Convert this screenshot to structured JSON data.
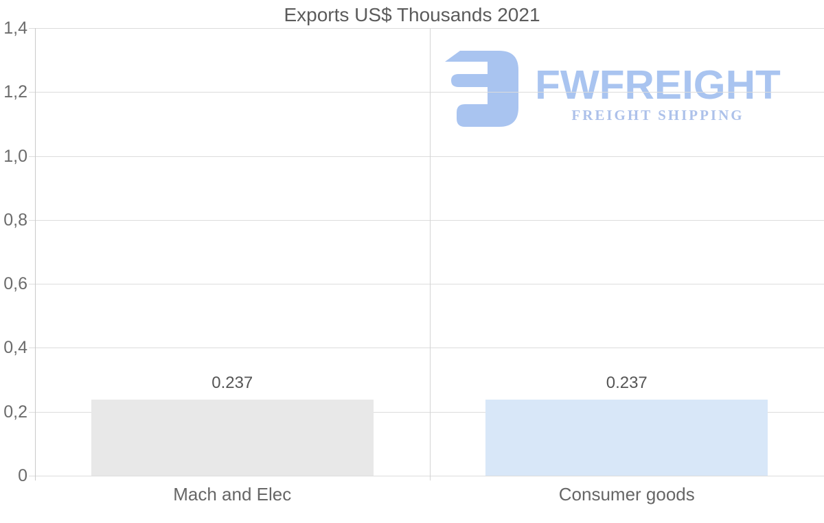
{
  "title": "Exports US$ Thousands 2021",
  "logo": {
    "brand": "FWFREIGHT",
    "tagline": "FREIGHT SHIPPING",
    "brand_color": "#a7c3f0",
    "tagline_color": "#abc0ea",
    "icon": "fw-mirrored-e-mark",
    "icon_color": "#a7c3f0"
  },
  "chart_data": {
    "type": "bar",
    "title": "Exports US$ Thousands 2021",
    "categories": [
      "Mach and Elec",
      "Consumer goods"
    ],
    "values": [
      0.237,
      0.237
    ],
    "value_labels": [
      "0.237",
      "0.237"
    ],
    "bar_colors": [
      "#e8e8e8",
      "#d8e7f8"
    ],
    "ylim": [
      0,
      1.4
    ],
    "y_ticks": [
      {
        "value": 0.0,
        "label": "0"
      },
      {
        "value": 0.2,
        "label": "0,2"
      },
      {
        "value": 0.4,
        "label": "0,4"
      },
      {
        "value": 0.6,
        "label": "0,6"
      },
      {
        "value": 0.8,
        "label": "0,8"
      },
      {
        "value": 1.0,
        "label": "1,0"
      },
      {
        "value": 1.2,
        "label": "1,2"
      },
      {
        "value": 1.4,
        "label": "1,4"
      }
    ],
    "grid": true,
    "legend": "none",
    "colors": {
      "gridline": "#dcdcdc",
      "axis_line": "#c9c9c9",
      "category_divider": "#d4d4d4",
      "title_text": "#5b5b5b",
      "tick_text": "#6b6b6b",
      "value_text": "#555555",
      "category_text": "#666666"
    }
  }
}
